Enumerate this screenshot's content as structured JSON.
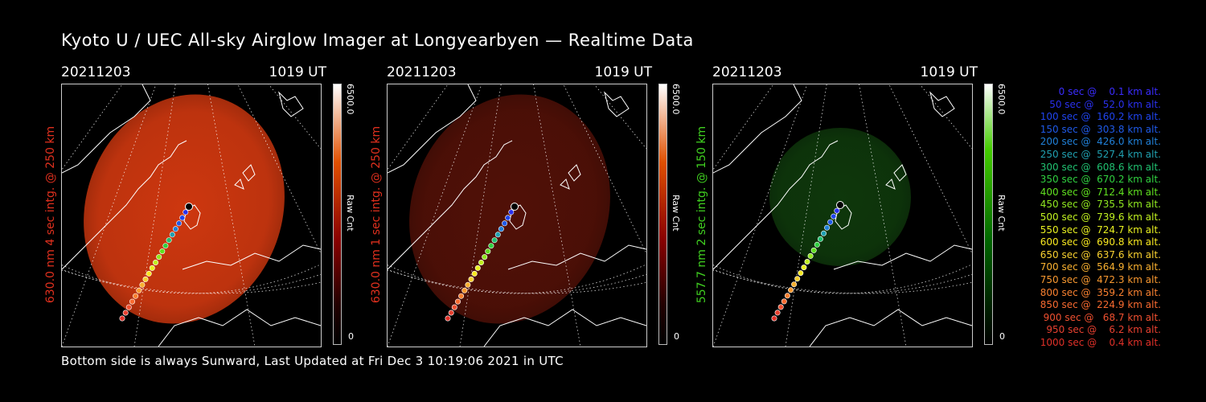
{
  "title": "Kyoto U / UEC All-sky Airglow Imager at Longyearbyen — Realtime Data",
  "footer": "Bottom side is always Sunward, Last Updated at Fri Dec  3 10:19:06 2021 in UTC",
  "panels": [
    {
      "date": "20211203",
      "time": "1019 UT",
      "ylabel": "630.0 nm 4 sec intg. @ 250 km",
      "label_color": "#e0301e",
      "cmax": "6500.0",
      "cunit": "Raw Cnt",
      "cmin": "0",
      "glow": "#d83a10",
      "glow_opacity": 0.95,
      "bar": "red"
    },
    {
      "date": "20211203",
      "time": "1019 UT",
      "ylabel": "630.0 nm 1 sec intg. @ 250 km",
      "label_color": "#e0301e",
      "cmax": "6500.0",
      "cunit": "Raw Cnt",
      "cmin": "0",
      "glow": "#5a1208",
      "glow_opacity": 0.9,
      "bar": "red"
    },
    {
      "date": "20211203",
      "time": "1019 UT",
      "ylabel": "557.7 nm 2 sec intg. @ 150 km",
      "label_color": "#40d020",
      "cmax": "6500.0",
      "cunit": "Raw Cnt",
      "cmin": "0",
      "glow": "#0f3a0c",
      "glow_opacity": 0.95,
      "bar": "green"
    }
  ],
  "legend": [
    {
      "text": "   0 sec @    0.1 km alt.",
      "color": "#3a2cff"
    },
    {
      "text": "  50 sec @   52.0 km alt.",
      "color": "#2a30ee"
    },
    {
      "text": " 100 sec @  160.2 km alt.",
      "color": "#1f44ee"
    },
    {
      "text": " 150 sec @  303.8 km alt.",
      "color": "#1f5ae8"
    },
    {
      "text": " 200 sec @  426.0 km alt.",
      "color": "#2080d8"
    },
    {
      "text": " 250 sec @  527.4 km alt.",
      "color": "#20a0b0"
    },
    {
      "text": " 300 sec @  608.6 km alt.",
      "color": "#20c070"
    },
    {
      "text": " 350 sec @  670.2 km alt.",
      "color": "#30d040"
    },
    {
      "text": " 400 sec @  712.4 km alt.",
      "color": "#60e020"
    },
    {
      "text": " 450 sec @  735.5 km alt.",
      "color": "#90e820"
    },
    {
      "text": " 500 sec @  739.6 km alt.",
      "color": "#c0f020"
    },
    {
      "text": " 550 sec @  724.7 km alt.",
      "color": "#e8f020"
    },
    {
      "text": " 600 sec @  690.8 km alt.",
      "color": "#f8e820"
    },
    {
      "text": " 650 sec @  637.6 km alt.",
      "color": "#f8d030"
    },
    {
      "text": " 700 sec @  564.9 km alt.",
      "color": "#f8b030"
    },
    {
      "text": " 750 sec @  472.3 km alt.",
      "color": "#f89830"
    },
    {
      "text": " 800 sec @  359.2 km alt.",
      "color": "#f88030"
    },
    {
      "text": " 850 sec @  224.9 km alt.",
      "color": "#f86a30"
    },
    {
      "text": " 900 sec @   68.7 km alt.",
      "color": "#f05030"
    },
    {
      "text": " 950 sec @    6.2 km alt.",
      "color": "#e84030"
    },
    {
      "text": "1000 sec @    0.4 km alt.",
      "color": "#e03028"
    }
  ]
}
